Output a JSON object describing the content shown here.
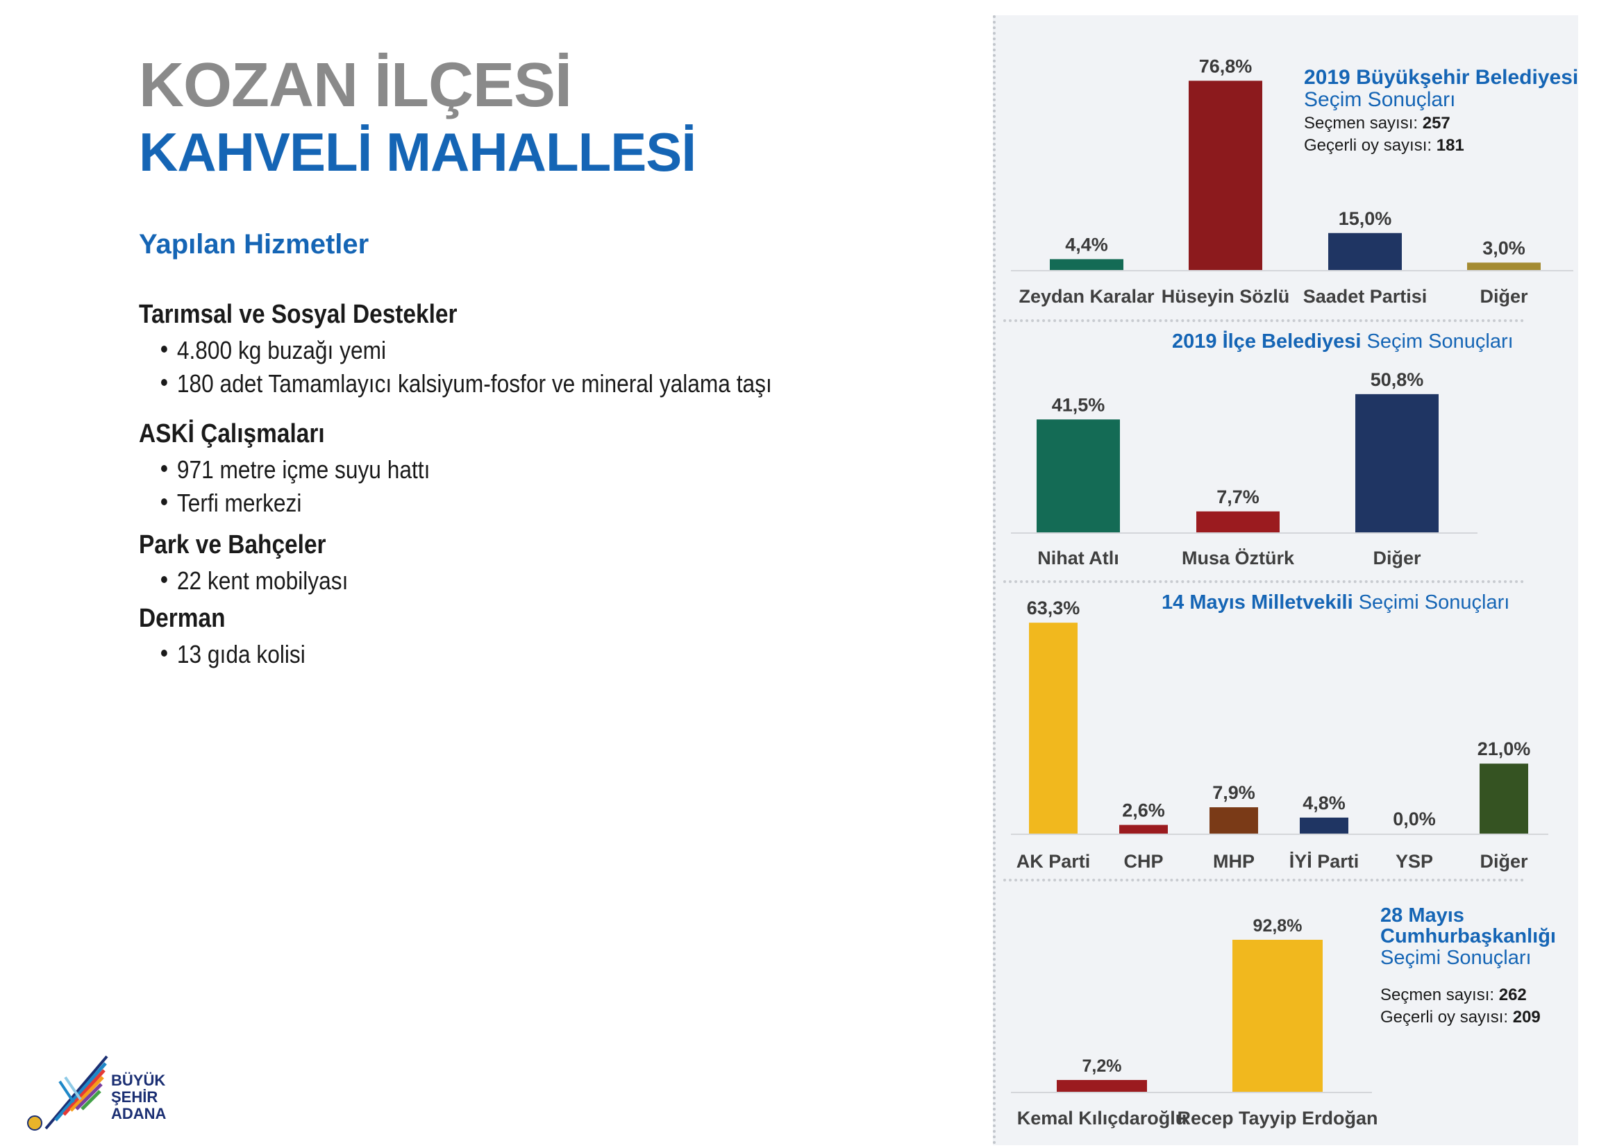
{
  "header": {
    "title_line1": "KOZAN İLÇESİ",
    "title_line2": "KAHVELİ MAHALLESİ"
  },
  "services": {
    "heading": "Yapılan Hizmetler",
    "groups": [
      {
        "title": "Tarımsal ve Sosyal Destekler",
        "items": [
          "4.800 kg buzağı yemi",
          "180 adet Tamamlayıcı kalsiyum-fosfor ve mineral yalama taşı"
        ]
      },
      {
        "title": "ASKİ Çalışmaları",
        "items": [
          "971 metre içme suyu hattı",
          "Terfi merkezi"
        ]
      },
      {
        "title": "Park ve Bahçeler",
        "items": [
          "22 kent mobilyası"
        ]
      },
      {
        "title": "Derman",
        "items": [
          "13 gıda kolisi"
        ]
      }
    ]
  },
  "logo": {
    "line1": "BÜYÜK",
    "line2": "ŞEHİR",
    "line3": "ADANA"
  },
  "chart_data": [
    {
      "type": "bar",
      "title": "2019 Büyükşehir Belediyesi",
      "subtitle": "Seçim Sonuçları",
      "info": {
        "label1": "Seçmen sayısı:",
        "value1": "257",
        "label2": "Geçerli oy sayısı:",
        "value2": "181"
      },
      "categories": [
        "Zeydan Karalar",
        "Hüseyin Sözlü",
        "Saadet Partisi",
        "Diğer"
      ],
      "values": [
        4.4,
        76.8,
        15.0,
        3.0
      ],
      "labels": [
        "4,4%",
        "76,8%",
        "15,0%",
        "3,0%"
      ],
      "colors": [
        "#146b55",
        "#8c1a1d",
        "#1f3563",
        "#a48b32"
      ]
    },
    {
      "type": "bar",
      "title": "2019 İlçe Belediyesi",
      "subtitle": "Seçim Sonuçları",
      "categories": [
        "Nihat Atlı",
        "Musa Öztürk",
        "Diğer"
      ],
      "values": [
        41.5,
        7.7,
        50.8
      ],
      "labels": [
        "41,5%",
        "7,7%",
        "50,8%"
      ],
      "colors": [
        "#146b55",
        "#9b1b1f",
        "#1f3563"
      ]
    },
    {
      "type": "bar",
      "title": "14 Mayıs Milletvekili",
      "subtitle": "Seçimi Sonuçları",
      "categories": [
        "AK Parti",
        "CHP",
        "MHP",
        "İYİ Parti",
        "YSP",
        "Diğer"
      ],
      "values": [
        63.3,
        2.6,
        7.9,
        4.8,
        0.0,
        21.0
      ],
      "labels": [
        "63,3%",
        "2,6%",
        "7,9%",
        "4,8%",
        "0,0%",
        "21,0%"
      ],
      "colors": [
        "#f1b81e",
        "#9b1b1f",
        "#7a3a17",
        "#1f3563",
        "#6b3d8c",
        "#355322"
      ]
    },
    {
      "type": "bar",
      "title_line1": "28 Mayıs",
      "title_line2": "Cumhurbaşkanlığı",
      "subtitle": "Seçimi Sonuçları",
      "info": {
        "label1": "Seçmen sayısı:",
        "value1": "262",
        "label2": "Geçerli oy sayısı:",
        "value2": "209"
      },
      "categories": [
        "Kemal Kılıçdaroğlu",
        "Recep Tayyip Erdoğan"
      ],
      "values": [
        7.2,
        92.8
      ],
      "labels": [
        "7,2%",
        "92,8%"
      ],
      "colors": [
        "#9b1b1f",
        "#f1b81e"
      ]
    }
  ]
}
